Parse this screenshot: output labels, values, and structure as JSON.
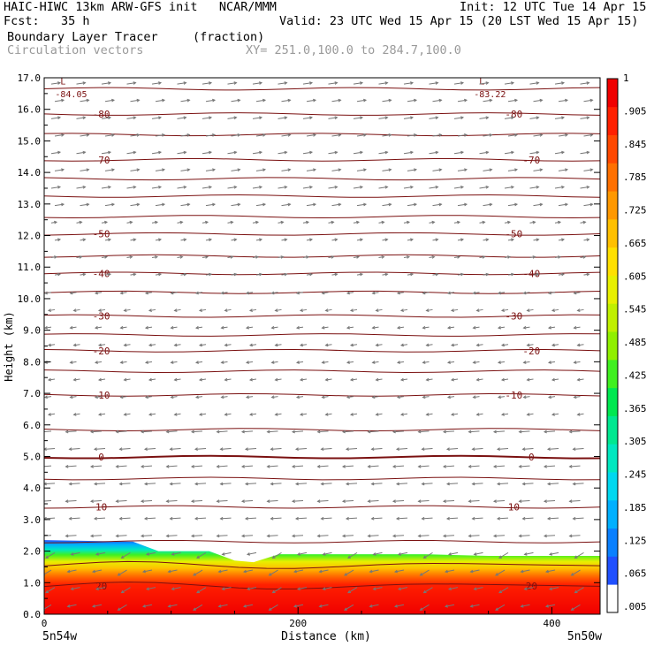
{
  "header": {
    "line1_left": "HAIC-HIWC 13km ARW-GFS init   NCAR/MMM",
    "line1_right": "Init: 12 UTC Tue 14 Apr 15",
    "line2_left": "Fcst:   35 h",
    "line2_right": "Valid: 23 UTC Wed 15 Apr 15 (20 LST Wed 15 Apr 15)",
    "field_name": "Boundary Layer Tracer",
    "field_units": "(fraction)",
    "vector_name": "Circulation vectors",
    "xy_range": "XY= 251.0,100.0 to 284.7,100.0"
  },
  "chart_data": {
    "type": "heatmap",
    "xlabel": "Distance (km)",
    "ylabel": "Height (km)",
    "xlim": [
      0,
      438
    ],
    "ylim": [
      0,
      17
    ],
    "x_ticks": [
      "0",
      "200",
      "400"
    ],
    "x_tick_values": [
      0,
      200,
      400
    ],
    "y_ticks": [
      "0.0",
      "1.0",
      "2.0",
      "3.0",
      "4.0",
      "5.0",
      "6.0",
      "7.0",
      "8.0",
      "9.0",
      "10.0",
      "11.0",
      "12.0",
      "13.0",
      "14.0",
      "15.0",
      "16.0",
      "17.0"
    ],
    "x_endpoints": {
      "left": "5n54w",
      "right": "5n50w"
    },
    "colorbar": {
      "labels": [
        ".005",
        ".065",
        ".125",
        ".185",
        ".245",
        ".305",
        ".365",
        ".425",
        ".485",
        ".545",
        ".605",
        ".665",
        ".725",
        ".785",
        ".845",
        ".905",
        "1"
      ],
      "colors": [
        "#ffffff",
        "#2050ff",
        "#0a80ff",
        "#00b0ff",
        "#00d8f0",
        "#00e8c0",
        "#00e890",
        "#00e850",
        "#40f020",
        "#90f000",
        "#c0f000",
        "#e8f000",
        "#ffe000",
        "#ffc000",
        "#ff9800",
        "#ff7000",
        "#ff4800",
        "#ff2000",
        "#f00000"
      ]
    },
    "tracer_profile": {
      "x": [
        0,
        70,
        90,
        130,
        150,
        165,
        185,
        220,
        300,
        350,
        438
      ],
      "top_km": [
        2.35,
        2.3,
        2.0,
        2.0,
        1.7,
        1.65,
        1.9,
        1.9,
        1.9,
        1.85,
        1.85
      ]
    },
    "temperature_contours": [
      {
        "label": "-80",
        "km": 15.85
      },
      {
        "label": "-70",
        "km": 14.4
      },
      {
        "label": "-50",
        "km": 12.05
      },
      {
        "label": "-40",
        "km": 10.8
      },
      {
        "label": "-30",
        "km": 9.45
      },
      {
        "label": "-20",
        "km": 8.35
      },
      {
        "label": "-10",
        "km": 6.95
      },
      {
        "label": "0",
        "km": 4.98
      },
      {
        "label": "10",
        "km": 3.4
      },
      {
        "label": "20",
        "km": 0.9
      }
    ],
    "extra_contour_km": [
      16.65,
      15.2,
      13.8,
      13.25,
      12.6,
      11.35,
      10.2,
      8.85,
      7.7,
      5.85,
      4.3,
      2.3,
      1.55
    ],
    "lows": [
      {
        "label": "L",
        "value": "-84.05"
      },
      {
        "label": "L",
        "value": "-83.22"
      }
    ],
    "grid": false
  }
}
